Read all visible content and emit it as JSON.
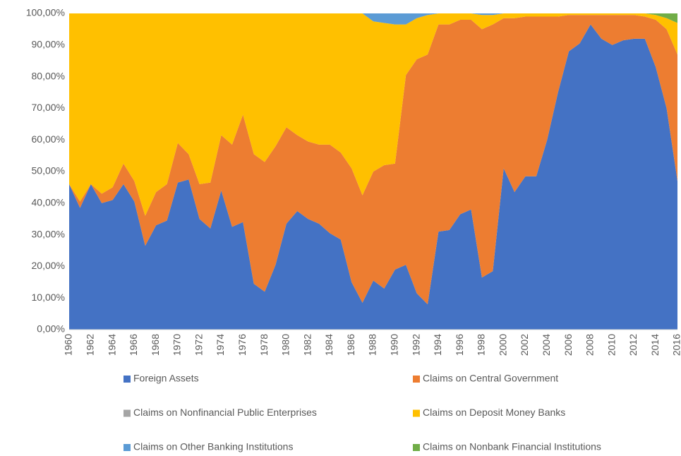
{
  "chart_data": {
    "type": "stacked_area",
    "categories": [
      "1960",
      null,
      "1962",
      null,
      "1964",
      null,
      "1966",
      null,
      "1968",
      null,
      "1970",
      null,
      "1972",
      null,
      "1974",
      null,
      "1976",
      null,
      "1978",
      null,
      "1980",
      null,
      "1982",
      null,
      "1984",
      null,
      "1986",
      null,
      "1988",
      null,
      "1990",
      null,
      "1992",
      null,
      "1994",
      null,
      "1996",
      null,
      "1998",
      null,
      "2000",
      null,
      "2002",
      null,
      "2004",
      null,
      "2006",
      null,
      "2008",
      null,
      "2010",
      null,
      "2012",
      null,
      "2014",
      null,
      "2016"
    ],
    "series": [
      {
        "name": "Foreign Assets",
        "color": "#4472c4",
        "values": [
          46,
          38.5,
          46,
          40,
          41,
          46,
          40.5,
          26.5,
          33,
          34.5,
          46.5,
          47.5,
          35,
          32,
          44,
          32.5,
          34,
          14.5,
          12,
          20.5,
          33.5,
          37.5,
          35,
          33.5,
          30.5,
          28.5,
          15,
          8.5,
          15.5,
          13,
          19,
          20.5,
          11.5,
          8,
          31,
          31.5,
          36.5,
          38,
          16.5,
          18.5,
          51,
          43.5,
          48.5,
          48.5,
          60,
          75,
          88,
          90.5,
          96.5,
          92,
          90,
          91.5,
          92,
          92,
          83,
          70,
          47
        ]
      },
      {
        "name": "Claims on Central Government",
        "color": "#ed7d31",
        "values": [
          0,
          2,
          0,
          3,
          4,
          6.5,
          6.5,
          9.5,
          10.5,
          11.5,
          12.5,
          8,
          11,
          14.5,
          17.5,
          26,
          34,
          41,
          41,
          37.5,
          30.5,
          24,
          24.5,
          25,
          28,
          27.5,
          36,
          34,
          34.5,
          39,
          33.5,
          60,
          74,
          79,
          65.5,
          65,
          61.5,
          60,
          78.5,
          78,
          47.5,
          55,
          50.5,
          50.5,
          39,
          24,
          11.5,
          9,
          3,
          7.5,
          9.5,
          8,
          7.5,
          7,
          15,
          25,
          40
        ]
      },
      {
        "name": "Claims on Nonfinancial Public Enterprises",
        "color": "#a5a5a5",
        "values": [
          0,
          0,
          0,
          0,
          0,
          0,
          0,
          0,
          0,
          0,
          0,
          0,
          0,
          0,
          0,
          0,
          0,
          0,
          0,
          0,
          0,
          0,
          0,
          0,
          0,
          0,
          0,
          0,
          0,
          0,
          0,
          0,
          0,
          0,
          0,
          0,
          0,
          0,
          0,
          0,
          0,
          0,
          0,
          0,
          0,
          0,
          0,
          0,
          0,
          0,
          0,
          0,
          0,
          0,
          0,
          0,
          0
        ]
      },
      {
        "name": "Claims on Deposit Money Banks",
        "color": "#ffc000",
        "values": [
          54,
          59.5,
          54,
          57,
          55,
          47.5,
          53,
          64,
          56.5,
          54,
          41,
          44.5,
          54,
          53.5,
          38.5,
          41.5,
          32,
          44.5,
          47,
          42,
          36,
          38.5,
          40.5,
          41.5,
          41.5,
          44,
          49,
          57.5,
          47.5,
          45,
          44,
          16,
          13,
          12.5,
          3.5,
          3.5,
          2,
          2,
          4.5,
          3,
          1.5,
          1.5,
          1,
          1,
          1,
          1,
          0.5,
          0.5,
          0.5,
          0.5,
          0.5,
          0.5,
          0.5,
          1,
          1.5,
          3.5,
          10
        ]
      },
      {
        "name": "Claims on Other Banking Institutions",
        "color": "#5b9bd5",
        "values": [
          0,
          0,
          0,
          0,
          0,
          0,
          0,
          0,
          0,
          0,
          0,
          0,
          0,
          0,
          0,
          0,
          0,
          0,
          0,
          0,
          0,
          0,
          0,
          0,
          0,
          0,
          0,
          0,
          2.5,
          3,
          3.5,
          3.5,
          1.5,
          0.5,
          0,
          0,
          0,
          0,
          0.5,
          0.5,
          0,
          0,
          0,
          0,
          0,
          0,
          0,
          0,
          0,
          0,
          0,
          0,
          0,
          0,
          0,
          0,
          0
        ]
      },
      {
        "name": "Claims on Nonbank Financial Institutions",
        "color": "#70ad47",
        "values": [
          0,
          0,
          0,
          0,
          0,
          0,
          0,
          0,
          0,
          0,
          0,
          0,
          0,
          0,
          0,
          0,
          0,
          0,
          0,
          0,
          0,
          0,
          0,
          0,
          0,
          0,
          0,
          0,
          0,
          0,
          0,
          0,
          0,
          0,
          0,
          0,
          0,
          0,
          0,
          0,
          0,
          0,
          0,
          0,
          0,
          0,
          0,
          0,
          0,
          0,
          0,
          0,
          0,
          0,
          0.5,
          1.5,
          3
        ]
      }
    ],
    "ylim": [
      0,
      100
    ],
    "yticks": [
      {
        "value": 0,
        "label": "0,00%"
      },
      {
        "value": 10,
        "label": "10,00%"
      },
      {
        "value": 20,
        "label": "20,00%"
      },
      {
        "value": 30,
        "label": "30,00%"
      },
      {
        "value": 40,
        "label": "40,00%"
      },
      {
        "value": 50,
        "label": "50,00%"
      },
      {
        "value": 60,
        "label": "60,00%"
      },
      {
        "value": 70,
        "label": "70,00%"
      },
      {
        "value": 80,
        "label": "80,00%"
      },
      {
        "value": 90,
        "label": "90,00%"
      },
      {
        "value": 100,
        "label": "100,00%"
      }
    ],
    "grid": false,
    "legend": "bottom"
  }
}
